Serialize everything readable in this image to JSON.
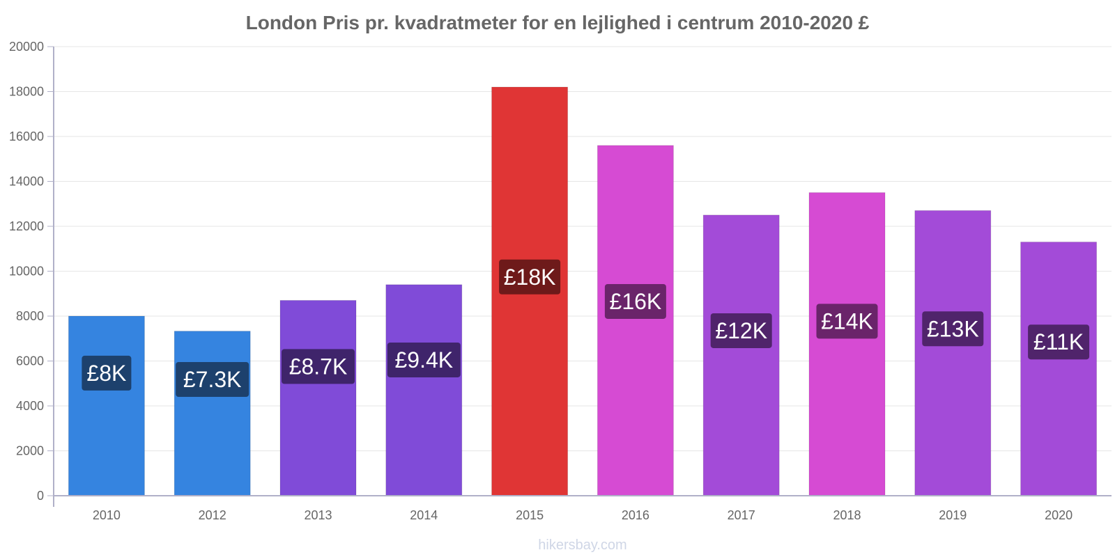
{
  "watermark": "hikersbay.com",
  "chart_data": {
    "type": "bar",
    "title": "London Pris pr. kvadratmeter for en lejlighed i centrum 2010-2020 £",
    "xlabel": "",
    "ylabel": "",
    "ylim": [
      0,
      20000
    ],
    "yticks": [
      0,
      2000,
      4000,
      6000,
      8000,
      10000,
      12000,
      14000,
      16000,
      18000,
      20000
    ],
    "grid": true,
    "legend": "none",
    "categories": [
      "2010",
      "2012",
      "2013",
      "2014",
      "2015",
      "2016",
      "2017",
      "2018",
      "2019",
      "2020"
    ],
    "values": [
      8000,
      7330,
      8700,
      9400,
      18200,
      15600,
      12500,
      13500,
      12700,
      11300
    ],
    "data_labels": [
      "£8K",
      "£7.3K",
      "£8.7K",
      "£9.4K",
      "£18K",
      "£16K",
      "£12K",
      "£14K",
      "£13K",
      "£11K"
    ],
    "bar_colors": [
      "#3584e0",
      "#3584e0",
      "#804bd8",
      "#804bd8",
      "#e03535",
      "#d64bd3",
      "#a34bd8",
      "#d64bd3",
      "#a34bd8",
      "#a34bd8"
    ],
    "label_box_colors": [
      "#1d416d",
      "#1d416d",
      "#3f246b",
      "#3f246b",
      "#6e1a1a",
      "#6a246a",
      "#50246b",
      "#6a246a",
      "#50246b",
      "#50246b"
    ]
  }
}
